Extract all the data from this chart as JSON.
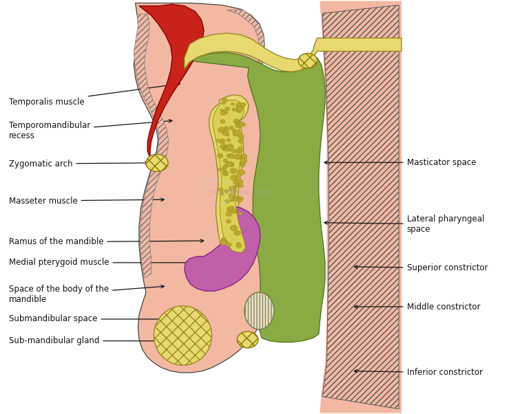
{
  "bg_color": "#ffffff",
  "figsize": [
    7.68,
    6.02
  ],
  "dpi": 100,
  "colors": {
    "skin_pink": "#f2b8a2",
    "skin_pink_light": "#f5c8b8",
    "red_muscle": "#c8221a",
    "yellow_bone": "#e8d870",
    "yellow_bone_dark": "#d4c045",
    "green_space": "#8aab44",
    "green_dark": "#6a8a30",
    "purple": "#c060a8",
    "white": "#ffffff",
    "outline": "#333333",
    "outline_dark": "#111111"
  },
  "labels_left": [
    {
      "text": "Temporalis muscle",
      "xt": 0.015,
      "yt": 0.755,
      "xa": 0.345,
      "ya": 0.8
    },
    {
      "text": "Temporomandibular\nrecess",
      "xt": 0.015,
      "yt": 0.685,
      "xa": 0.33,
      "ya": 0.71
    },
    {
      "text": "Zygomatic arch",
      "xt": 0.015,
      "yt": 0.605,
      "xa": 0.285,
      "ya": 0.607
    },
    {
      "text": "Masseter muscle",
      "xt": 0.015,
      "yt": 0.515,
      "xa": 0.315,
      "ya": 0.518
    },
    {
      "text": "Ramus of the mandible",
      "xt": 0.015,
      "yt": 0.415,
      "xa": 0.39,
      "ya": 0.418
    },
    {
      "text": "Medial pterygoid muscle",
      "xt": 0.015,
      "yt": 0.365,
      "xa": 0.39,
      "ya": 0.365
    },
    {
      "text": "Space of the body of the\nmandible",
      "xt": 0.015,
      "yt": 0.288,
      "xa": 0.315,
      "ya": 0.308
    },
    {
      "text": "Submandibular space",
      "xt": 0.015,
      "yt": 0.228,
      "xa": 0.335,
      "ya": 0.228
    },
    {
      "text": "Sub-mandibular gland",
      "xt": 0.015,
      "yt": 0.175,
      "xa": 0.34,
      "ya": 0.175
    }
  ],
  "labels_right": [
    {
      "text": "Masticator space",
      "xt": 0.77,
      "yt": 0.608,
      "xa": 0.608,
      "ya": 0.608
    },
    {
      "text": "Lateral pharyngeal\nspace",
      "xt": 0.77,
      "yt": 0.458,
      "xa": 0.608,
      "ya": 0.462
    },
    {
      "text": "Superior constrictor",
      "xt": 0.77,
      "yt": 0.352,
      "xa": 0.665,
      "ya": 0.355
    },
    {
      "text": "Middle constrictor",
      "xt": 0.77,
      "yt": 0.258,
      "xa": 0.665,
      "ya": 0.258
    },
    {
      "text": "Inferior constrictor",
      "xt": 0.77,
      "yt": 0.098,
      "xa": 0.665,
      "ya": 0.102
    }
  ]
}
